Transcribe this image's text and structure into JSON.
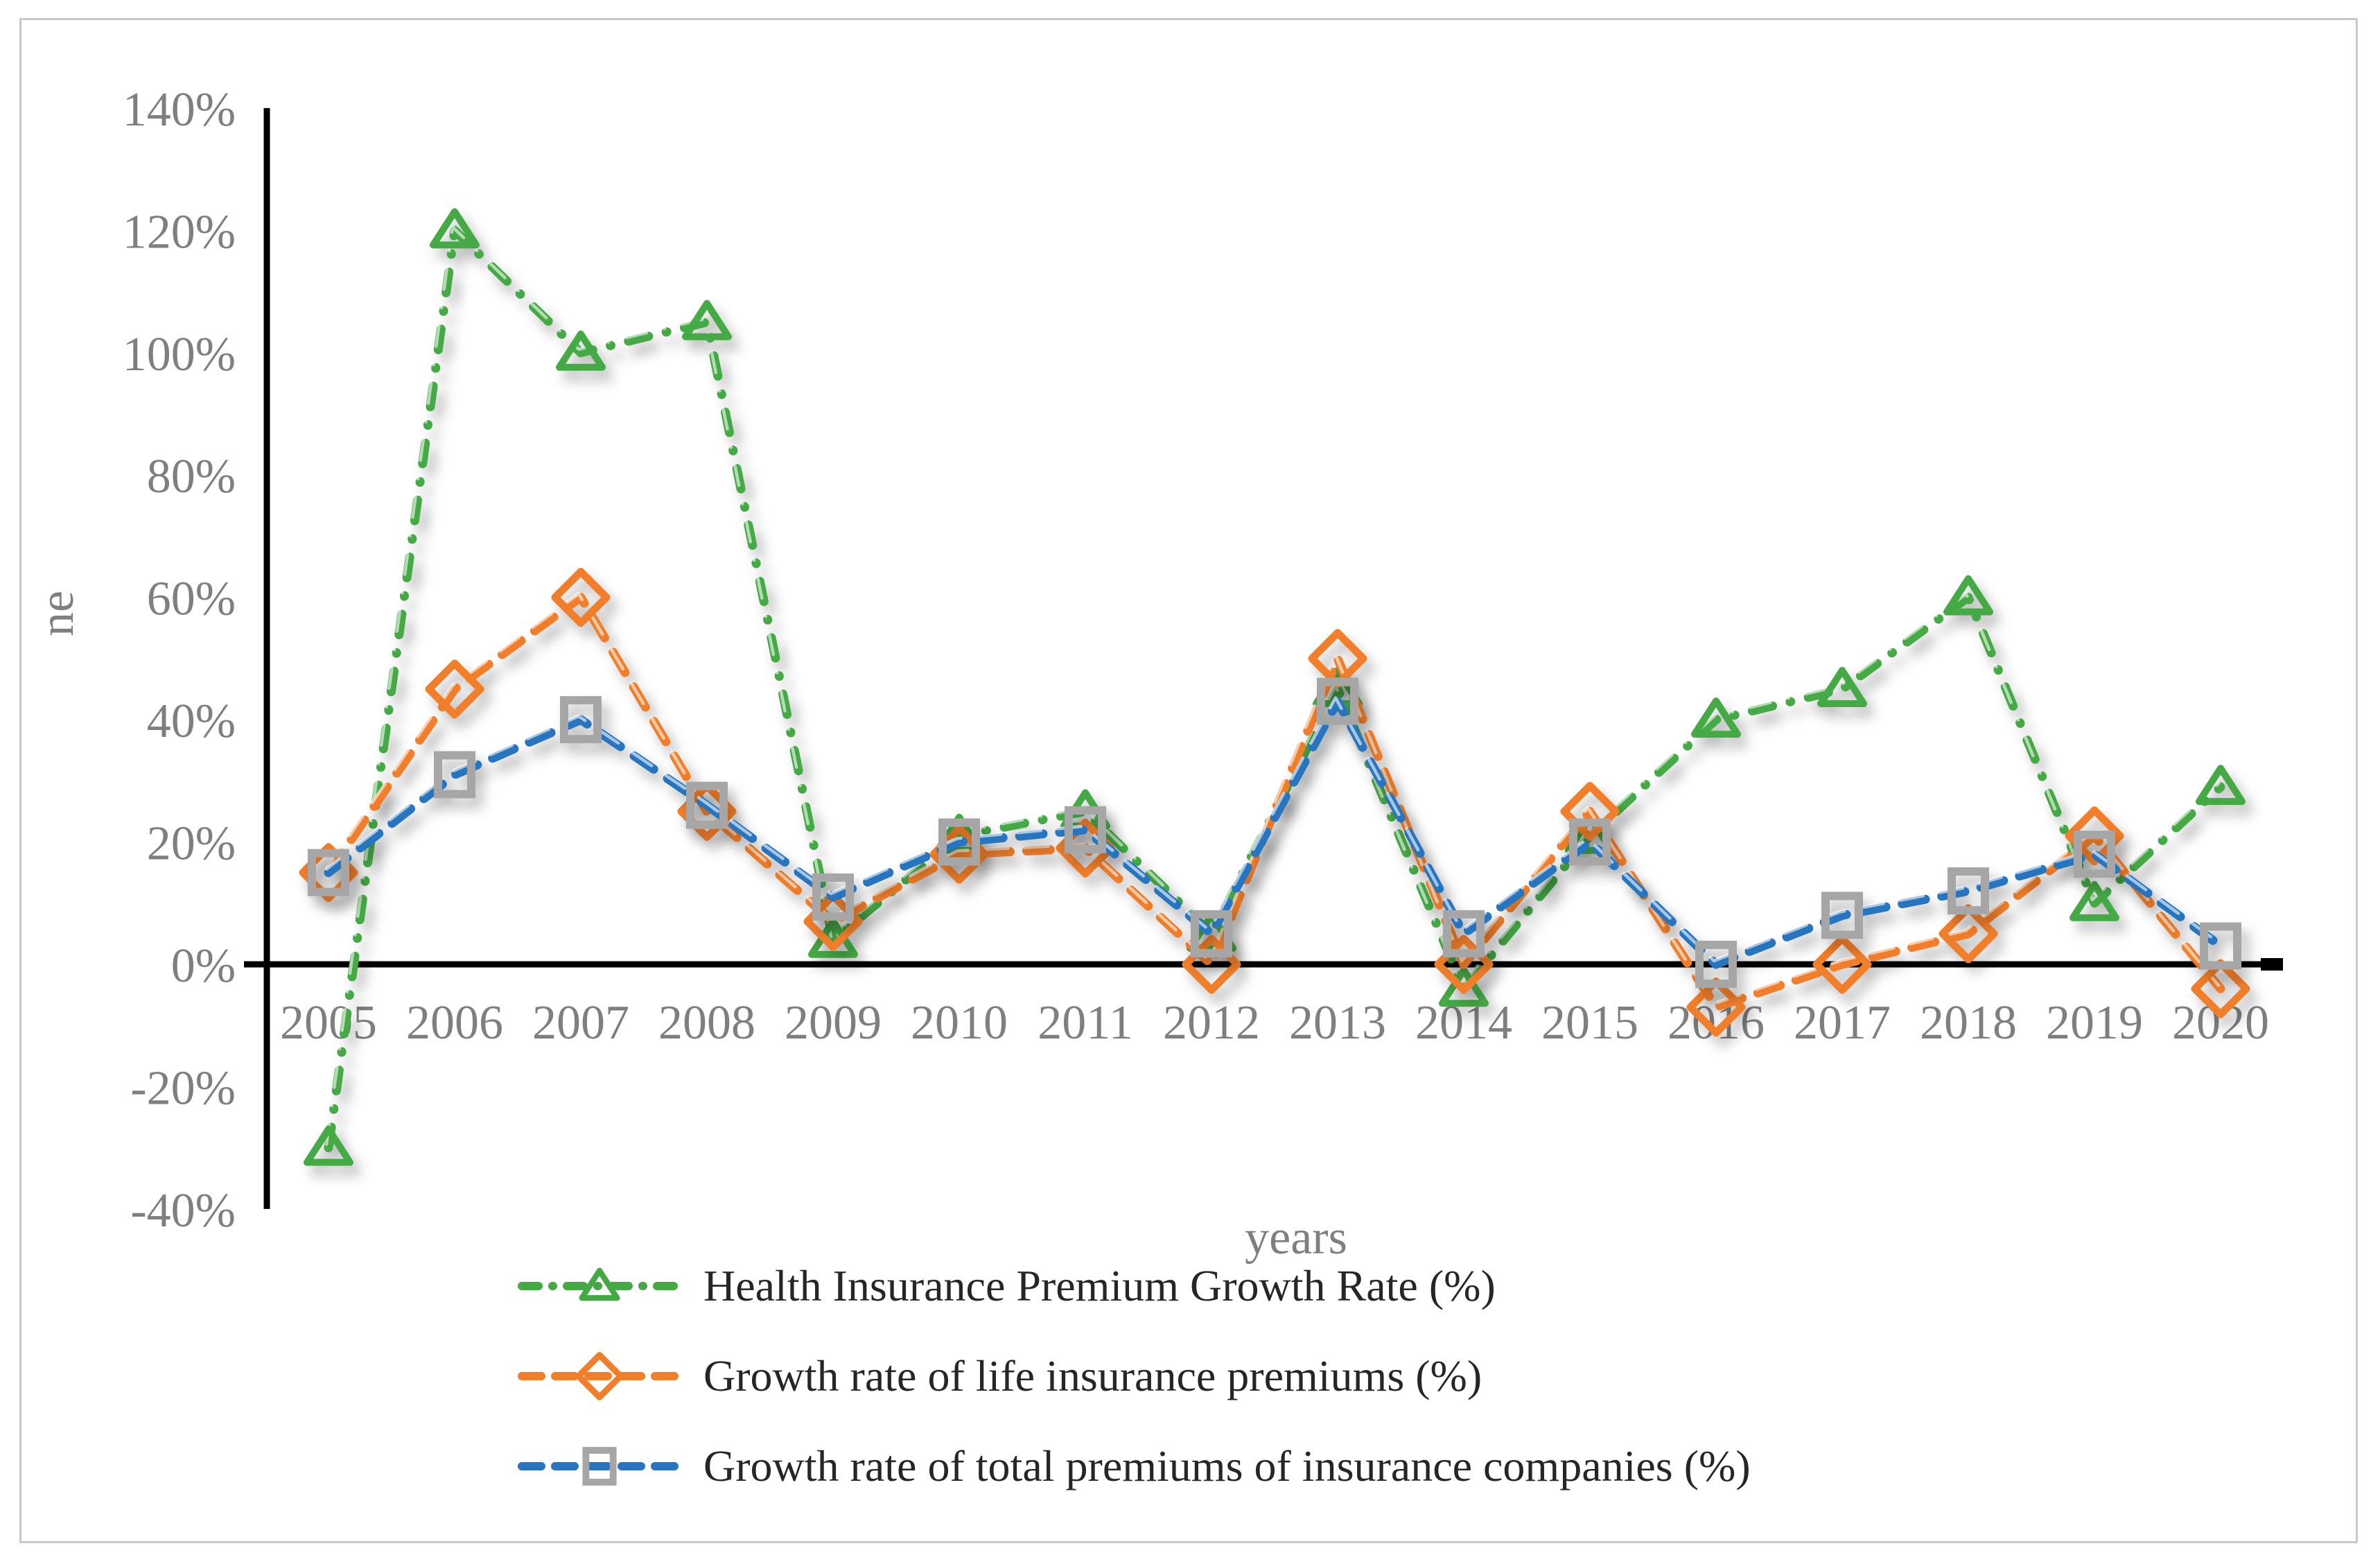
{
  "chart_data": {
    "type": "line",
    "title": "",
    "xlabel": "years",
    "ylabel": "ne",
    "grid": false,
    "legend_position": "bottom-left",
    "ylim": [
      -40,
      140
    ],
    "ytick_labels": [
      "140%",
      "120%",
      "100%",
      "80%",
      "60%",
      "40%",
      "20%",
      "0%",
      "-20%",
      "-40%"
    ],
    "ytick_values": [
      140,
      120,
      100,
      80,
      60,
      40,
      20,
      0,
      -20,
      -40
    ],
    "categories": [
      "2005",
      "2006",
      "2007",
      "2008",
      "2009",
      "2010",
      "2011",
      "2012",
      "2013",
      "2014",
      "2015",
      "2016",
      "2017",
      "2018",
      "2019",
      "2020"
    ],
    "series": [
      {
        "name": "Health Insurance Premium Growth Rate (%)",
        "marker": "triangle",
        "color": "#44a944",
        "values": [
          -30,
          120,
          100,
          105,
          4,
          21,
          25,
          5,
          45,
          -4,
          21,
          40,
          45,
          60,
          10,
          29
        ]
      },
      {
        "name": "Growth rate of life insurance premiums (%)",
        "marker": "diamond",
        "color": "#f07e2a",
        "values": [
          15,
          45,
          60,
          25,
          7,
          18,
          19,
          0,
          50,
          0,
          25,
          -7,
          0,
          5,
          21,
          -4
        ]
      },
      {
        "name": "Growth rate of total premiums of insurance companies (%)",
        "marker": "square",
        "color": "#2874be",
        "marker_color": "#a6a6a6",
        "values": [
          15,
          31,
          40,
          26,
          11,
          20,
          22,
          5,
          43,
          5,
          20,
          0,
          8,
          12,
          18,
          3
        ]
      }
    ]
  }
}
